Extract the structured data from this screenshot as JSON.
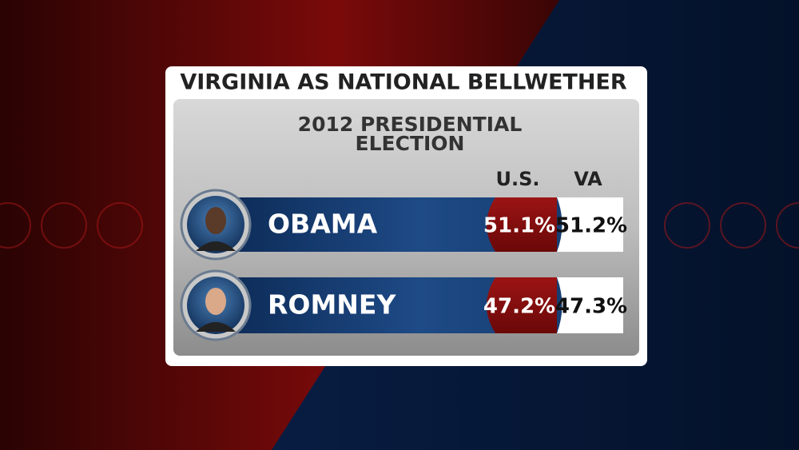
{
  "header": {
    "title": "VIRGINIA AS NATIONAL BELLWETHER",
    "subtitle_line1": "2012 PRESIDENTIAL",
    "subtitle_line2": "ELECTION"
  },
  "table": {
    "columns": [
      "U.S.",
      "VA"
    ],
    "rows": [
      {
        "name": "OBAMA",
        "us": "51.1%",
        "va": "51.2%"
      },
      {
        "name": "ROMNEY",
        "us": "47.2%",
        "va": "47.3%"
      }
    ]
  }
}
